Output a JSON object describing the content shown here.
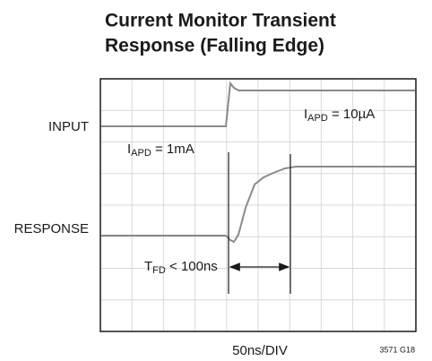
{
  "header": {
    "title_lines": [
      "Current Monitor Transient",
      "Response (Falling Edge)"
    ]
  },
  "traces": {
    "input_label": "INPUT",
    "response_label": "RESPONSE"
  },
  "annotations": {
    "low_current": {
      "main": "I",
      "sub": "APD",
      "rest": " = 1mA"
    },
    "high_current": {
      "main": "I",
      "sub": "APD",
      "rest": " = 10µA"
    },
    "fall_time": {
      "main": "T",
      "sub": "FD",
      "rest": " < 100ns"
    }
  },
  "footer": {
    "timebase": "50ns/DIV",
    "figure_id": "3571 G18"
  }
}
